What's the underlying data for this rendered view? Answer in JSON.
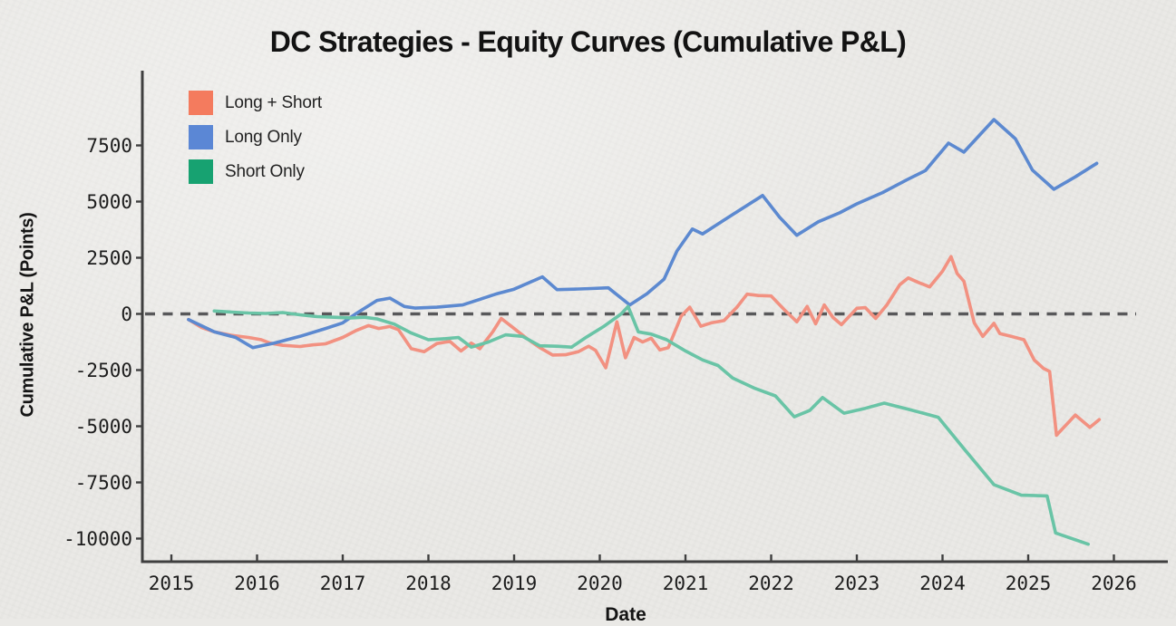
{
  "page": {
    "background_color": "#eae9e6"
  },
  "chart_data": {
    "type": "line",
    "title": "DC Strategies - Equity Curves (Cumulative P&L)",
    "xlabel": "Date",
    "ylabel": "Cumulative P&L (Points)",
    "x_ticks": [
      2015,
      2016,
      2017,
      2018,
      2019,
      2020,
      2021,
      2022,
      2023,
      2024,
      2025,
      2026
    ],
    "y_ticks": [
      7500,
      5000,
      2500,
      0,
      -2500,
      -5000,
      -7500,
      -10000
    ],
    "xlim": [
      2014.66,
      2026.63
    ],
    "ylim": [
      -11000,
      10800
    ],
    "grid": false,
    "legend_position": "upper-left",
    "axis_color": "#3f3f3f",
    "tick_text_color": "#1d1d1d",
    "zero_line": {
      "value": 0,
      "style": "dashed",
      "color": "#58585a"
    },
    "series": [
      {
        "name": "Long + Short",
        "color": "#f47b5e",
        "line_color": "#f29181",
        "points": [
          [
            2015.2,
            -250
          ],
          [
            2015.35,
            -600
          ],
          [
            2015.5,
            -800
          ],
          [
            2015.7,
            -950
          ],
          [
            2015.9,
            -1050
          ],
          [
            2016.05,
            -1150
          ],
          [
            2016.15,
            -1300
          ],
          [
            2016.3,
            -1400
          ],
          [
            2016.5,
            -1450
          ],
          [
            2016.65,
            -1380
          ],
          [
            2016.8,
            -1330
          ],
          [
            2017.0,
            -1050
          ],
          [
            2017.15,
            -750
          ],
          [
            2017.3,
            -520
          ],
          [
            2017.42,
            -650
          ],
          [
            2017.55,
            -560
          ],
          [
            2017.65,
            -700
          ],
          [
            2017.8,
            -1550
          ],
          [
            2017.95,
            -1680
          ],
          [
            2018.1,
            -1320
          ],
          [
            2018.25,
            -1220
          ],
          [
            2018.38,
            -1650
          ],
          [
            2018.5,
            -1300
          ],
          [
            2018.6,
            -1550
          ],
          [
            2018.75,
            -800
          ],
          [
            2018.85,
            -200
          ],
          [
            2019.0,
            -650
          ],
          [
            2019.15,
            -1100
          ],
          [
            2019.3,
            -1500
          ],
          [
            2019.45,
            -1830
          ],
          [
            2019.6,
            -1820
          ],
          [
            2019.75,
            -1680
          ],
          [
            2019.87,
            -1440
          ],
          [
            2019.95,
            -1620
          ],
          [
            2020.07,
            -2400
          ],
          [
            2020.2,
            -350
          ],
          [
            2020.3,
            -1950
          ],
          [
            2020.4,
            -1050
          ],
          [
            2020.5,
            -1250
          ],
          [
            2020.6,
            -1080
          ],
          [
            2020.7,
            -1600
          ],
          [
            2020.8,
            -1500
          ],
          [
            2020.95,
            -100
          ],
          [
            2021.05,
            300
          ],
          [
            2021.18,
            -550
          ],
          [
            2021.3,
            -400
          ],
          [
            2021.45,
            -300
          ],
          [
            2021.6,
            300
          ],
          [
            2021.72,
            880
          ],
          [
            2021.85,
            820
          ],
          [
            2022.0,
            800
          ],
          [
            2022.15,
            200
          ],
          [
            2022.3,
            -350
          ],
          [
            2022.42,
            330
          ],
          [
            2022.52,
            -440
          ],
          [
            2022.62,
            400
          ],
          [
            2022.72,
            -150
          ],
          [
            2022.82,
            -480
          ],
          [
            2023.0,
            250
          ],
          [
            2023.1,
            280
          ],
          [
            2023.22,
            -200
          ],
          [
            2023.35,
            400
          ],
          [
            2023.5,
            1300
          ],
          [
            2023.6,
            1600
          ],
          [
            2023.72,
            1400
          ],
          [
            2023.85,
            1200
          ],
          [
            2024.0,
            1900
          ],
          [
            2024.1,
            2550
          ],
          [
            2024.17,
            1800
          ],
          [
            2024.25,
            1450
          ],
          [
            2024.37,
            -400
          ],
          [
            2024.47,
            -1000
          ],
          [
            2024.6,
            -420
          ],
          [
            2024.67,
            -880
          ],
          [
            2024.8,
            -1000
          ],
          [
            2024.95,
            -1150
          ],
          [
            2025.07,
            -2050
          ],
          [
            2025.18,
            -2430
          ],
          [
            2025.25,
            -2560
          ],
          [
            2025.33,
            -5400
          ],
          [
            2025.55,
            -4500
          ],
          [
            2025.72,
            -5050
          ],
          [
            2025.83,
            -4700
          ]
        ]
      },
      {
        "name": "Long Only",
        "color": "#5b87d5",
        "line_color": "#5c89d0",
        "points": [
          [
            2015.2,
            -250
          ],
          [
            2015.5,
            -800
          ],
          [
            2015.75,
            -1050
          ],
          [
            2015.95,
            -1500
          ],
          [
            2016.2,
            -1300
          ],
          [
            2016.5,
            -1000
          ],
          [
            2016.8,
            -650
          ],
          [
            2017.0,
            -400
          ],
          [
            2017.15,
            0
          ],
          [
            2017.4,
            600
          ],
          [
            2017.55,
            700
          ],
          [
            2017.72,
            330
          ],
          [
            2017.85,
            260
          ],
          [
            2018.1,
            300
          ],
          [
            2018.4,
            400
          ],
          [
            2018.6,
            650
          ],
          [
            2018.8,
            900
          ],
          [
            2019.0,
            1100
          ],
          [
            2019.33,
            1650
          ],
          [
            2019.5,
            1080
          ],
          [
            2019.7,
            1100
          ],
          [
            2019.9,
            1130
          ],
          [
            2020.1,
            1160
          ],
          [
            2020.35,
            400
          ],
          [
            2020.55,
            900
          ],
          [
            2020.75,
            1550
          ],
          [
            2020.9,
            2800
          ],
          [
            2021.08,
            3780
          ],
          [
            2021.2,
            3560
          ],
          [
            2021.5,
            4300
          ],
          [
            2021.9,
            5270
          ],
          [
            2022.1,
            4300
          ],
          [
            2022.3,
            3500
          ],
          [
            2022.55,
            4100
          ],
          [
            2022.8,
            4500
          ],
          [
            2023.0,
            4900
          ],
          [
            2023.3,
            5400
          ],
          [
            2023.6,
            6000
          ],
          [
            2023.8,
            6380
          ],
          [
            2024.07,
            7600
          ],
          [
            2024.25,
            7200
          ],
          [
            2024.6,
            8650
          ],
          [
            2024.85,
            7800
          ],
          [
            2025.05,
            6400
          ],
          [
            2025.3,
            5550
          ],
          [
            2025.55,
            6100
          ],
          [
            2025.8,
            6700
          ]
        ]
      },
      {
        "name": "Short Only",
        "color": "#17a271",
        "line_color": "#69c4a6",
        "points": [
          [
            2015.5,
            130
          ],
          [
            2015.7,
            80
          ],
          [
            2015.9,
            40
          ],
          [
            2016.1,
            20
          ],
          [
            2016.3,
            60
          ],
          [
            2016.5,
            -40
          ],
          [
            2016.7,
            -120
          ],
          [
            2016.9,
            -150
          ],
          [
            2017.1,
            -180
          ],
          [
            2017.25,
            -150
          ],
          [
            2017.4,
            -220
          ],
          [
            2017.6,
            -450
          ],
          [
            2017.8,
            -850
          ],
          [
            2018.0,
            -1150
          ],
          [
            2018.2,
            -1100
          ],
          [
            2018.35,
            -1050
          ],
          [
            2018.5,
            -1480
          ],
          [
            2018.7,
            -1250
          ],
          [
            2018.9,
            -930
          ],
          [
            2019.1,
            -1000
          ],
          [
            2019.3,
            -1420
          ],
          [
            2019.5,
            -1440
          ],
          [
            2019.67,
            -1480
          ],
          [
            2019.85,
            -1020
          ],
          [
            2020.05,
            -550
          ],
          [
            2020.25,
            0
          ],
          [
            2020.33,
            330
          ],
          [
            2020.45,
            -800
          ],
          [
            2020.6,
            -900
          ],
          [
            2020.78,
            -1150
          ],
          [
            2021.0,
            -1650
          ],
          [
            2021.2,
            -2050
          ],
          [
            2021.38,
            -2300
          ],
          [
            2021.55,
            -2850
          ],
          [
            2021.8,
            -3300
          ],
          [
            2022.05,
            -3650
          ],
          [
            2022.27,
            -4580
          ],
          [
            2022.45,
            -4300
          ],
          [
            2022.6,
            -3720
          ],
          [
            2022.85,
            -4420
          ],
          [
            2023.1,
            -4200
          ],
          [
            2023.32,
            -3970
          ],
          [
            2023.6,
            -4240
          ],
          [
            2023.95,
            -4600
          ],
          [
            2024.25,
            -6000
          ],
          [
            2024.6,
            -7600
          ],
          [
            2024.92,
            -8070
          ],
          [
            2025.22,
            -8100
          ],
          [
            2025.32,
            -9750
          ],
          [
            2025.7,
            -10250
          ]
        ]
      }
    ]
  }
}
